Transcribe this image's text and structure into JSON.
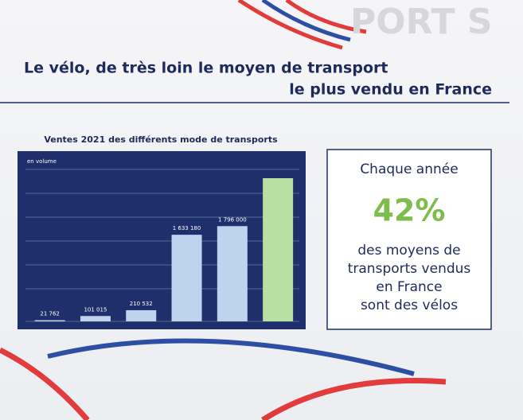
{
  "watermark": "PORT S",
  "title": [
    "Le vélo, de très loin le moyen de transport",
    "le plus vendu en France"
  ],
  "chart_data": {
    "type": "bar",
    "title": "Ventes 2021 des différents mode de transports",
    "subtitle": "en volume",
    "categories": [
      null,
      null,
      null,
      null,
      null,
      null
    ],
    "values": [
      21762,
      101015,
      210532,
      1633180,
      1796000,
      2700000
    ],
    "value_labels": [
      "21 762",
      "101 015",
      "210 532",
      "1 633 180",
      "1 796 000",
      null
    ],
    "colors": [
      "#bdd3ee",
      "#bdd3ee",
      "#bdd3ee",
      "#bdd3ee",
      "#bdd3ee",
      "#b9e0a3"
    ],
    "ylim": [
      0,
      3000000
    ]
  },
  "callout": {
    "lines_top": [
      "Chaque année"
    ],
    "highlight": "42%",
    "lines_bottom": [
      "des moyens de",
      "transports vendus",
      "en France",
      "sont des vélos"
    ]
  }
}
